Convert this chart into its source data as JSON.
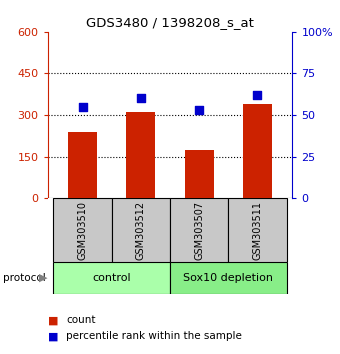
{
  "title": "GDS3480 / 1398208_s_at",
  "samples": [
    "GSM303510",
    "GSM303512",
    "GSM303507",
    "GSM303511"
  ],
  "counts": [
    240,
    310,
    175,
    340
  ],
  "percentiles": [
    55,
    60,
    53,
    62
  ],
  "left_ylim": [
    0,
    600
  ],
  "left_yticks": [
    0,
    150,
    300,
    450,
    600
  ],
  "right_ylim": [
    0,
    100
  ],
  "right_yticks": [
    0,
    25,
    50,
    75,
    100
  ],
  "right_yticklabels": [
    "0",
    "25",
    "50",
    "75",
    "100%"
  ],
  "bar_color": "#cc2200",
  "dot_color": "#0000cc",
  "left_tick_color": "#cc2200",
  "right_tick_color": "#0000cc",
  "protocol_groups": [
    {
      "label": "control",
      "start": 0,
      "end": 2,
      "color": "#aaffaa"
    },
    {
      "label": "Sox10 depletion",
      "start": 2,
      "end": 4,
      "color": "#88ee88"
    }
  ],
  "xlabel_area_color": "#c8c8c8",
  "background_color": "#ffffff",
  "bar_width": 0.5,
  "gridline_ticks": [
    150,
    300,
    450
  ]
}
